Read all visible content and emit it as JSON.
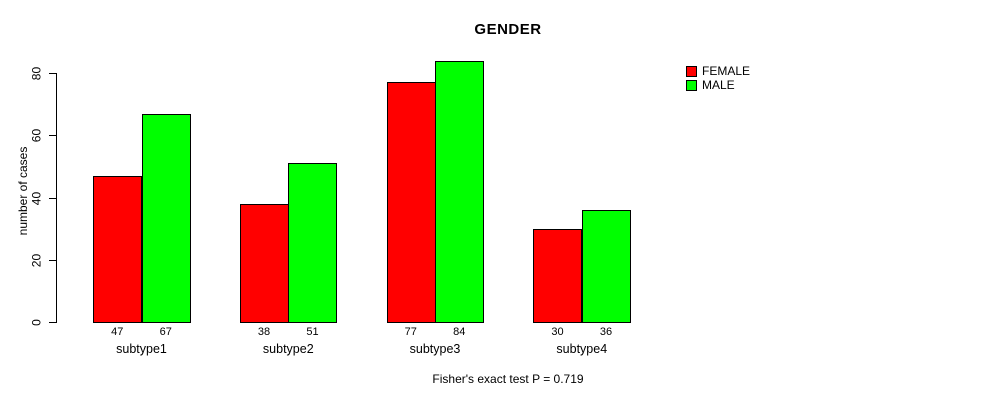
{
  "title": "GENDER",
  "footer": "Fisher's exact test P = 0.719",
  "colors": {
    "female": "#ff0000",
    "male": "#00ff00",
    "axis": "#000000",
    "background": "#ffffff"
  },
  "chart_data": {
    "type": "bar",
    "title": "GENDER",
    "categories": [
      "subtype1",
      "subtype2",
      "subtype3",
      "subtype4"
    ],
    "series": [
      {
        "name": "FEMALE",
        "color": "#ff0000",
        "values": [
          47,
          38,
          77,
          30
        ]
      },
      {
        "name": "MALE",
        "color": "#00ff00",
        "values": [
          67,
          51,
          84,
          36
        ]
      }
    ],
    "bar_value_labels": [
      [
        "47",
        "67"
      ],
      [
        "38",
        "51"
      ],
      [
        "77",
        "84"
      ],
      [
        "30",
        "36"
      ]
    ],
    "xlabel": "",
    "ylabel": "number of cases",
    "ylim": [
      0,
      80
    ],
    "yticks": [
      0,
      20,
      40,
      60,
      80
    ],
    "grid": false,
    "legend_position": "right",
    "annotation": "Fisher's exact test P = 0.719"
  }
}
